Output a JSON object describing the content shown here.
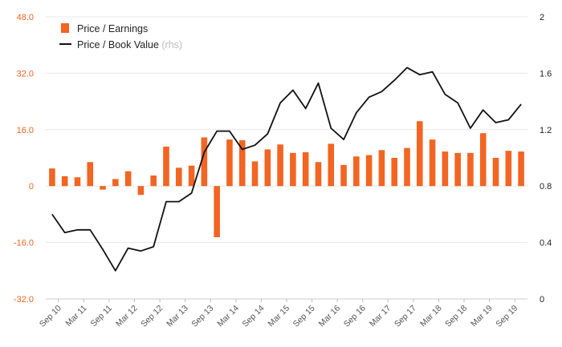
{
  "chart_data": {
    "type": "bar+line",
    "colors": {
      "bars": "#f26522",
      "line": "#111111",
      "grid": "#e8e8e8",
      "left_axis_text": "#f26522",
      "right_axis_text": "#222222"
    },
    "legend": [
      {
        "name": "Price / Earnings",
        "marker": "bar",
        "suffix": ""
      },
      {
        "name": "Price / Book Value",
        "marker": "line",
        "suffix": "(rhs)"
      }
    ],
    "x_tick_labels": [
      "Sep 10",
      "Mar 11",
      "Sep 11",
      "Mar 12",
      "Sep 12",
      "Mar 13",
      "Sep 13",
      "Mar 14",
      "Sep 14",
      "Mar 15",
      "Sep 15",
      "Mar 16",
      "Sep 16",
      "Mar 17",
      "Sep 17",
      "Mar 18",
      "Sep 18",
      "Mar 19",
      "Sep 19"
    ],
    "left_axis": {
      "min": -32,
      "max": 48,
      "ticks": [
        -32,
        -16,
        0,
        16,
        32,
        48
      ],
      "tick_labels": [
        "-32.0",
        "-16.0",
        "0",
        "16.0",
        "32.0",
        "48.0"
      ]
    },
    "right_axis": {
      "min": 0,
      "max": 2,
      "ticks": [
        0,
        0.4,
        0.8,
        1.2,
        1.6,
        2
      ],
      "tick_labels": [
        "0",
        "0.4",
        "0.8",
        "1.2",
        "1.6",
        "2"
      ]
    },
    "series": [
      {
        "name": "Price / Earnings",
        "type": "bar",
        "axis": "left",
        "values": [
          5.0,
          2.8,
          2.5,
          6.8,
          -1.0,
          2.0,
          4.2,
          -2.5,
          3.0,
          11.2,
          5.2,
          5.8,
          13.8,
          -14.5,
          13.2,
          13.0,
          7.0,
          10.4,
          11.8,
          9.4,
          9.6,
          6.8,
          12.0,
          6.0,
          8.4,
          8.8,
          10.2,
          8.0,
          10.8,
          18.4,
          13.2,
          9.8,
          9.4,
          9.4,
          15.0,
          8.0,
          10.0,
          9.8
        ]
      },
      {
        "name": "Price / Book Value",
        "type": "line",
        "axis": "right",
        "values": [
          0.6,
          0.47,
          0.49,
          0.49,
          0.35,
          0.2,
          0.36,
          0.34,
          0.37,
          0.69,
          0.69,
          0.75,
          1.04,
          1.19,
          1.19,
          1.06,
          1.09,
          1.17,
          1.39,
          1.48,
          1.35,
          1.53,
          1.21,
          1.13,
          1.32,
          1.43,
          1.47,
          1.55,
          1.64,
          1.59,
          1.61,
          1.45,
          1.39,
          1.21,
          1.34,
          1.25,
          1.27,
          1.38
        ]
      }
    ]
  }
}
